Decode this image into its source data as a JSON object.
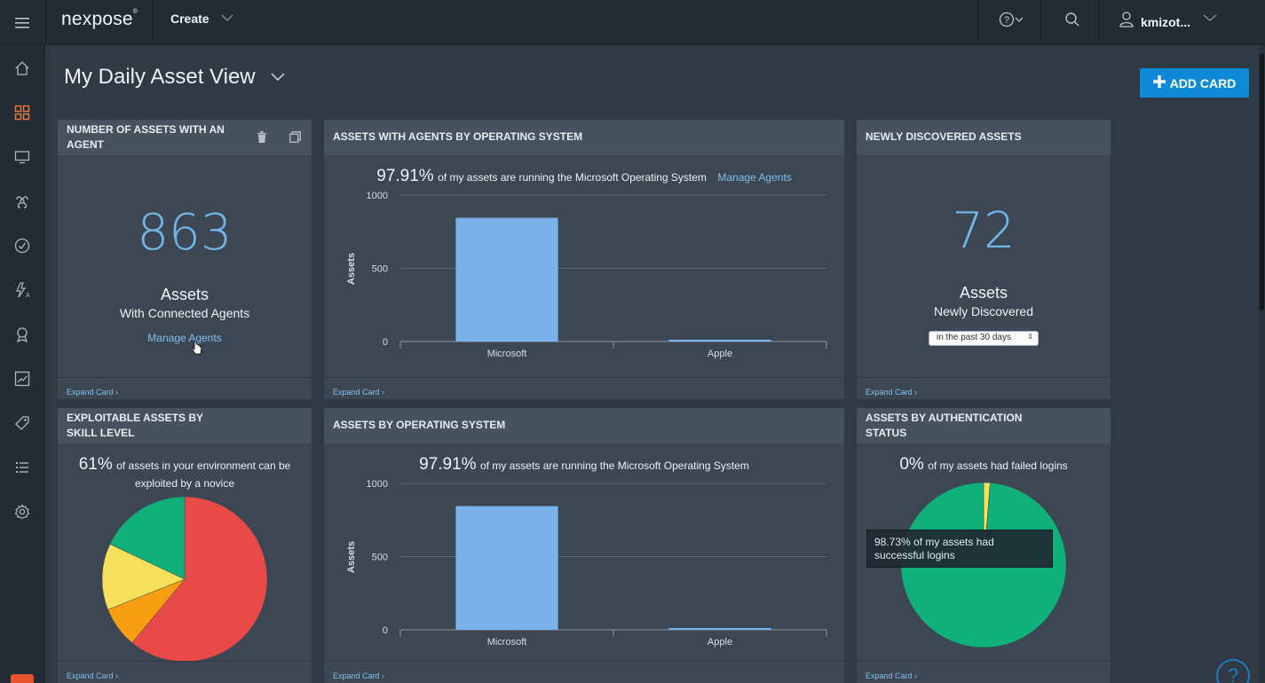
{
  "header": {
    "brand": "nexpose",
    "create_label": "Create",
    "username": "kmizot...",
    "icons": [
      "menu-icon",
      "help-icon",
      "search-icon",
      "user-icon"
    ]
  },
  "sidebar": {
    "items": [
      "home-icon",
      "dashboard-icon",
      "assets-icon",
      "vulnerabilities-icon",
      "policies-icon",
      "remediations-icon",
      "reports-icon",
      "trends-icon",
      "tags-icon",
      "list-icon",
      "settings-icon"
    ]
  },
  "page": {
    "title": "My Daily Asset View",
    "add_card_label": "ADD CARD"
  },
  "cards": {
    "agents": {
      "title": "NUMBER OF ASSETS WITH AN AGENT",
      "value": "863",
      "label": "Assets",
      "sublabel": "With Connected Agents",
      "link": "Manage Agents",
      "expand": "Expand Card"
    },
    "agents_os": {
      "title": "ASSETS WITH AGENTS BY OPERATING SYSTEM",
      "pct": "97.91%",
      "text": "of my assets are running the Microsoft Operating System",
      "link": "Manage Agents",
      "expand": "Expand Card"
    },
    "new_assets": {
      "title": "NEWLY DISCOVERED ASSETS",
      "value": "72",
      "label": "Assets",
      "sublabel": "Newly Discovered",
      "select_value": "in the past 30 days",
      "expand": "Expand Card"
    },
    "exploitable": {
      "title": "EXPLOITABLE ASSETS BY SKILL LEVEL",
      "pct": "61%",
      "text_line1": "of assets in your environment can be",
      "text_line2": "exploited by a novice",
      "expand": "Expand Card"
    },
    "assets_os": {
      "title": "ASSETS BY OPERATING SYSTEM",
      "pct": "97.91%",
      "text": "of my assets are running the Microsoft Operating System",
      "expand": "Expand Card"
    },
    "auth": {
      "title": "ASSETS BY AUTHENTICATION STATUS",
      "pct": "0%",
      "text": "of my assets had failed logins",
      "tooltip": "98.73% of my assets had successful logins",
      "expand": "Expand Card"
    }
  },
  "chart_data": [
    {
      "type": "bar",
      "categories": [
        "Microsoft",
        "Apple"
      ],
      "values": [
        845,
        12
      ],
      "ylabel": "Assets",
      "yticks": [
        "0",
        "500",
        "1000"
      ],
      "ylim": [
        0,
        1000
      ],
      "color": "#7bb2ea"
    },
    {
      "type": "bar",
      "categories": [
        "Microsoft",
        "Apple"
      ],
      "values": [
        845,
        12
      ],
      "ylabel": "Assets",
      "yticks": [
        "0",
        "500",
        "1000"
      ],
      "ylim": [
        0,
        1000
      ],
      "color": "#7bb2ea"
    },
    {
      "type": "pie",
      "values": [
        61,
        8,
        13,
        18
      ],
      "colors": [
        "#e84a4a",
        "#f79f10",
        "#f7e15c",
        "#10b07a"
      ]
    },
    {
      "type": "pie",
      "values": [
        1.27,
        98.73
      ],
      "colors": [
        "#f0e35c",
        "#10b07a"
      ]
    }
  ]
}
